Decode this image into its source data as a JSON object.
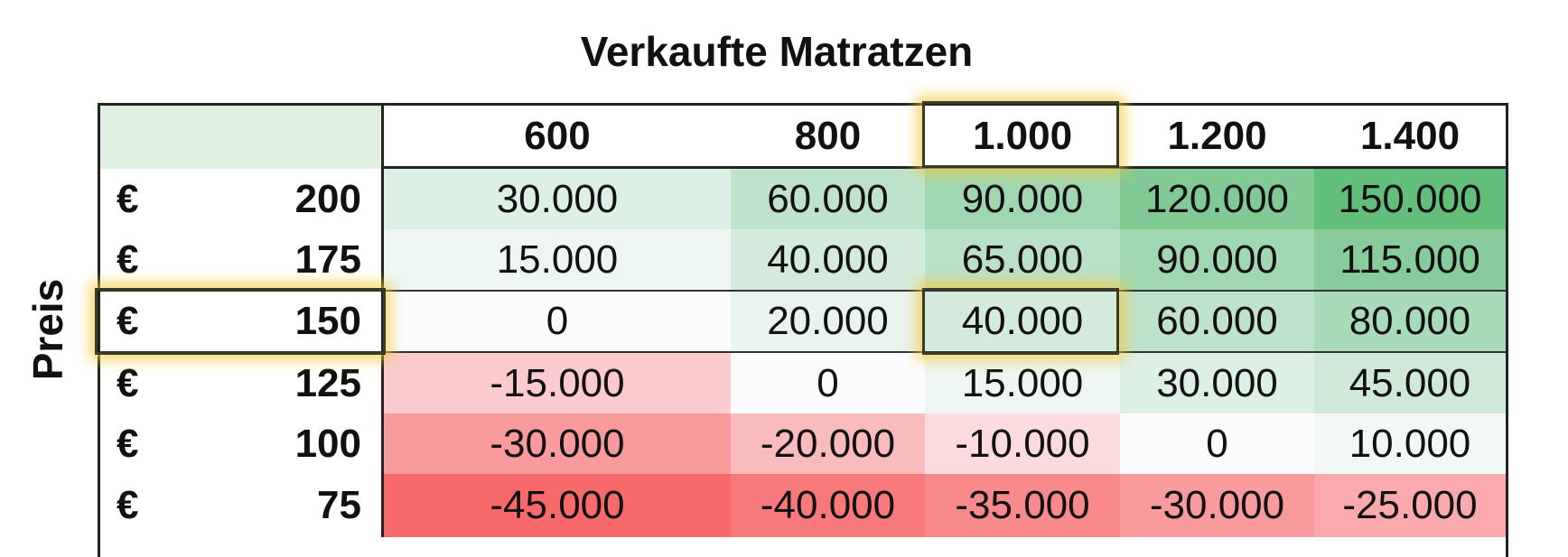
{
  "chart_data": {
    "type": "heatmap",
    "title": "Verkaufte Matratzen",
    "ylabel": "Preis",
    "currency": "€",
    "x": [
      "600",
      "800",
      "1.000",
      "1.200",
      "1.400"
    ],
    "y": [
      "200",
      "175",
      "150",
      "125",
      "100",
      "75"
    ],
    "values": [
      [
        "30.000",
        "60.000",
        "90.000",
        "120.000",
        "150.000"
      ],
      [
        "15.000",
        "40.000",
        "65.000",
        "90.000",
        "115.000"
      ],
      [
        "0",
        "20.000",
        "40.000",
        "60.000",
        "80.000"
      ],
      [
        "-15.000",
        "0",
        "15.000",
        "30.000",
        "45.000"
      ],
      [
        "-30.000",
        "-20.000",
        "-10.000",
        "0",
        "10.000"
      ],
      [
        "-45.000",
        "-40.000",
        "-35.000",
        "-30.000",
        "-25.000"
      ]
    ],
    "highlight": {
      "column": "1.000",
      "row": "150",
      "highlight_color": "#f5c83c"
    },
    "colors": {
      "negative": "#f8696b",
      "neutral": "#fcfcff",
      "positive": "#63be7b"
    }
  }
}
